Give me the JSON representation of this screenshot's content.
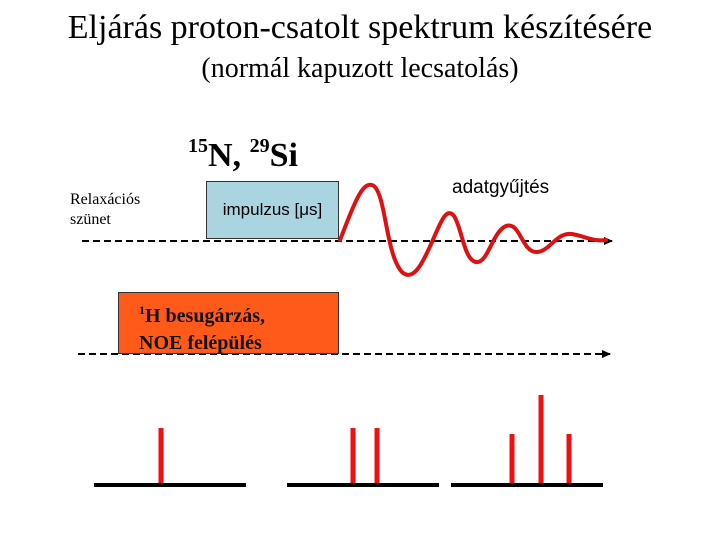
{
  "title": "Eljárás proton-csatolt spektrum készítésére",
  "subtitle": "(normál kapuzott lecsatolás)",
  "nuclei": {
    "n_mass": "15",
    "n_symbol": "N,",
    "si_mass": "29",
    "si_symbol": "Si"
  },
  "relaxation_label": {
    "line1": "Relaxációs",
    "line2": "szünet"
  },
  "pulse_label": "impulzus [μs]",
  "acquisition_label": "adatgyűjtés",
  "proton_box": {
    "mass": "1",
    "line1": "H besugárzás,",
    "line2": "NOE felépülés"
  },
  "colors": {
    "pulse_box": "#a9d4e0",
    "proton_box": "#ff5a1a",
    "fid_wave": "#dd1111",
    "spectral_lines": "#ee1111",
    "baseline": "#000000"
  }
}
